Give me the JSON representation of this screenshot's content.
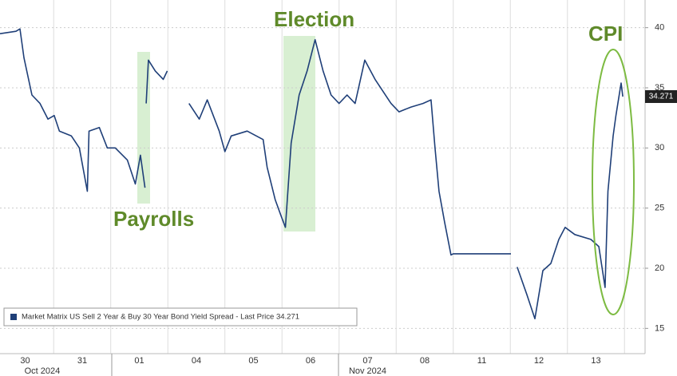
{
  "chart_data": {
    "type": "line",
    "legend_text": "Market Matrix US Sell 2 Year & Buy 30 Year Bond Yield Spread - Last Price 34.271",
    "last_price": 34.271,
    "annotations": [
      "Payrolls",
      "Election",
      "CPI"
    ],
    "series": [
      {
        "name": "Market Matrix US Sell 2 Year & Buy 30 Year Bond Yield Spread",
        "color": "#1f3f78",
        "x": [
          0.06,
          0.34,
          0.41,
          0.48,
          0.62,
          0.76,
          0.9,
          1.01,
          1.1,
          1.31,
          1.45,
          1.59,
          1.62,
          1.8,
          1.94,
          2.08,
          2.29,
          2.43,
          2.52,
          2.6,
          null,
          2.62,
          2.66,
          2.78,
          2.92,
          2.99,
          null,
          3.37,
          3.55,
          3.69,
          3.9,
          4.0,
          4.11,
          4.39,
          4.67,
          4.74,
          4.88,
          4.98,
          5.06,
          5.16,
          5.3,
          5.44,
          5.58,
          5.72,
          5.86,
          6.0,
          6.14,
          6.28,
          6.45,
          6.63,
          6.91,
          7.05,
          7.26,
          7.47,
          7.61,
          7.68,
          7.75,
          7.85,
          7.96,
          8.0,
          9.01,
          null,
          9.12,
          9.29,
          9.43,
          9.57,
          9.71,
          9.85,
          9.96,
          10.13,
          10.41,
          10.55,
          10.66,
          10.71,
          10.8,
          10.85,
          10.94,
          10.97
        ],
        "values": [
          39.5,
          39.7,
          39.9,
          37.5,
          34.4,
          33.7,
          32.4,
          32.7,
          31.4,
          31,
          30,
          26.4,
          31.4,
          31.7,
          30,
          30,
          29,
          27,
          29.4,
          26.7,
          null,
          33.7,
          37.3,
          36.4,
          35.7,
          36.4,
          null,
          33.7,
          32.4,
          34,
          31.4,
          29.7,
          31,
          31.4,
          30.7,
          28.4,
          25.7,
          24.4,
          23.4,
          30.4,
          34.4,
          36.4,
          39,
          36.4,
          34.4,
          33.7,
          34.4,
          33.7,
          37.3,
          35.7,
          33.7,
          33,
          33.4,
          33.7,
          34,
          30,
          26.4,
          23.8,
          21.1,
          21.2,
          21.2,
          null,
          20.1,
          17.8,
          15.8,
          19.8,
          20.4,
          22.4,
          23.4,
          22.8,
          22.4,
          21.8,
          18.4,
          26.4,
          31,
          32.7,
          35.4,
          34.271
        ]
      }
    ],
    "xlim": [
      0.06,
      11.36
    ],
    "xticks": [
      {
        "value": 0.5,
        "label": "30"
      },
      {
        "value": 1.5,
        "label": "31"
      },
      {
        "value": 2.5,
        "label": "01"
      },
      {
        "value": 3.5,
        "label": "04"
      },
      {
        "value": 4.5,
        "label": "05"
      },
      {
        "value": 5.5,
        "label": "06"
      },
      {
        "value": 6.5,
        "label": "07"
      },
      {
        "value": 7.5,
        "label": "08"
      },
      {
        "value": 8.5,
        "label": "11"
      },
      {
        "value": 9.5,
        "label": "12"
      },
      {
        "value": 10.5,
        "label": "13"
      }
    ],
    "month_labels": [
      {
        "value": 0.8,
        "label": "Oct 2024"
      },
      {
        "value": 6.5,
        "label": "Nov 2024"
      }
    ],
    "ylim": [
      12.9,
      42.3
    ],
    "yticks": [
      15,
      20,
      25,
      30,
      35,
      40
    ],
    "grid": true
  }
}
